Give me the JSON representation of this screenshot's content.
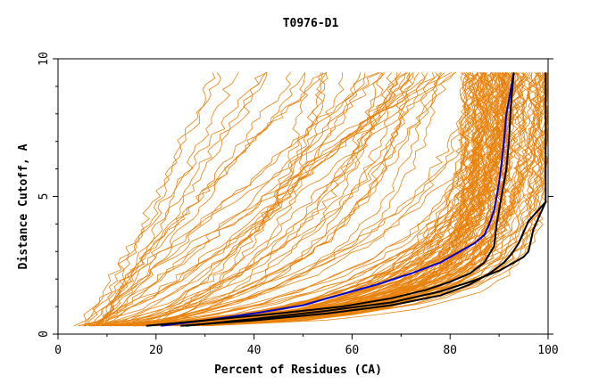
{
  "chart_data": {
    "type": "line",
    "title": "T0976-D1",
    "xlabel": "Percent of Residues (CA)",
    "ylabel": "Distance Cutoff, A",
    "xlim": [
      0,
      100
    ],
    "ylim": [
      0,
      10
    ],
    "x_ticks": [
      "0",
      "20",
      "40",
      "60",
      "80",
      "100"
    ],
    "y_ticks": [
      "0",
      "5",
      "10"
    ],
    "grid": false,
    "background_series": {
      "color": "#e8820c",
      "count": 150,
      "shape": "cumulative distance-cutoff curves, starting near x=4-30 at y=0.3 and rising to y=9.5; most curves bunch at x 60-100 below y=3, while a fan of curves spreads across x 5-100 at higher cutoffs"
    },
    "series": [
      {
        "color": "#0000cc",
        "x": [
          21,
          30,
          40,
          50,
          57,
          65,
          72,
          78,
          82,
          85,
          87,
          88,
          89,
          90,
          90.5,
          91,
          91.5,
          92,
          92.5,
          93
        ],
        "y": [
          0.3,
          0.5,
          0.75,
          1.05,
          1.4,
          1.8,
          2.2,
          2.6,
          3.0,
          3.3,
          3.6,
          4.0,
          4.5,
          5.5,
          6.2,
          7.0,
          8.0,
          8.5,
          9.0,
          9.5
        ]
      },
      {
        "color": "#000000",
        "x": [
          18,
          30,
          45,
          58,
          68,
          75,
          80,
          84,
          87,
          89,
          89.5,
          90,
          90.5,
          91,
          91.5,
          92,
          92.5,
          93
        ],
        "y": [
          0.3,
          0.5,
          0.75,
          1.0,
          1.3,
          1.6,
          1.9,
          2.2,
          2.6,
          3.2,
          4.0,
          4.5,
          5.0,
          5.5,
          6.0,
          7.0,
          8.5,
          9.5
        ]
      },
      {
        "color": "#000000",
        "x": [
          25,
          40,
          55,
          68,
          78,
          84,
          88,
          91,
          92.5,
          94,
          95,
          96,
          98,
          99.5
        ],
        "y": [
          0.3,
          0.5,
          0.75,
          1.05,
          1.4,
          1.8,
          2.2,
          2.6,
          2.9,
          3.3,
          3.7,
          4.1,
          4.5,
          4.8
        ]
      },
      {
        "color": "#000000",
        "x": [
          26,
          40,
          55,
          68,
          78,
          85,
          90,
          93,
          95,
          96,
          96.5,
          97,
          98,
          99.5,
          99.5,
          99.5
        ],
        "y": [
          0.3,
          0.55,
          0.85,
          1.15,
          1.55,
          1.95,
          2.3,
          2.6,
          2.8,
          3.0,
          3.4,
          3.8,
          4.2,
          4.8,
          5.0,
          9.5
        ]
      }
    ]
  }
}
